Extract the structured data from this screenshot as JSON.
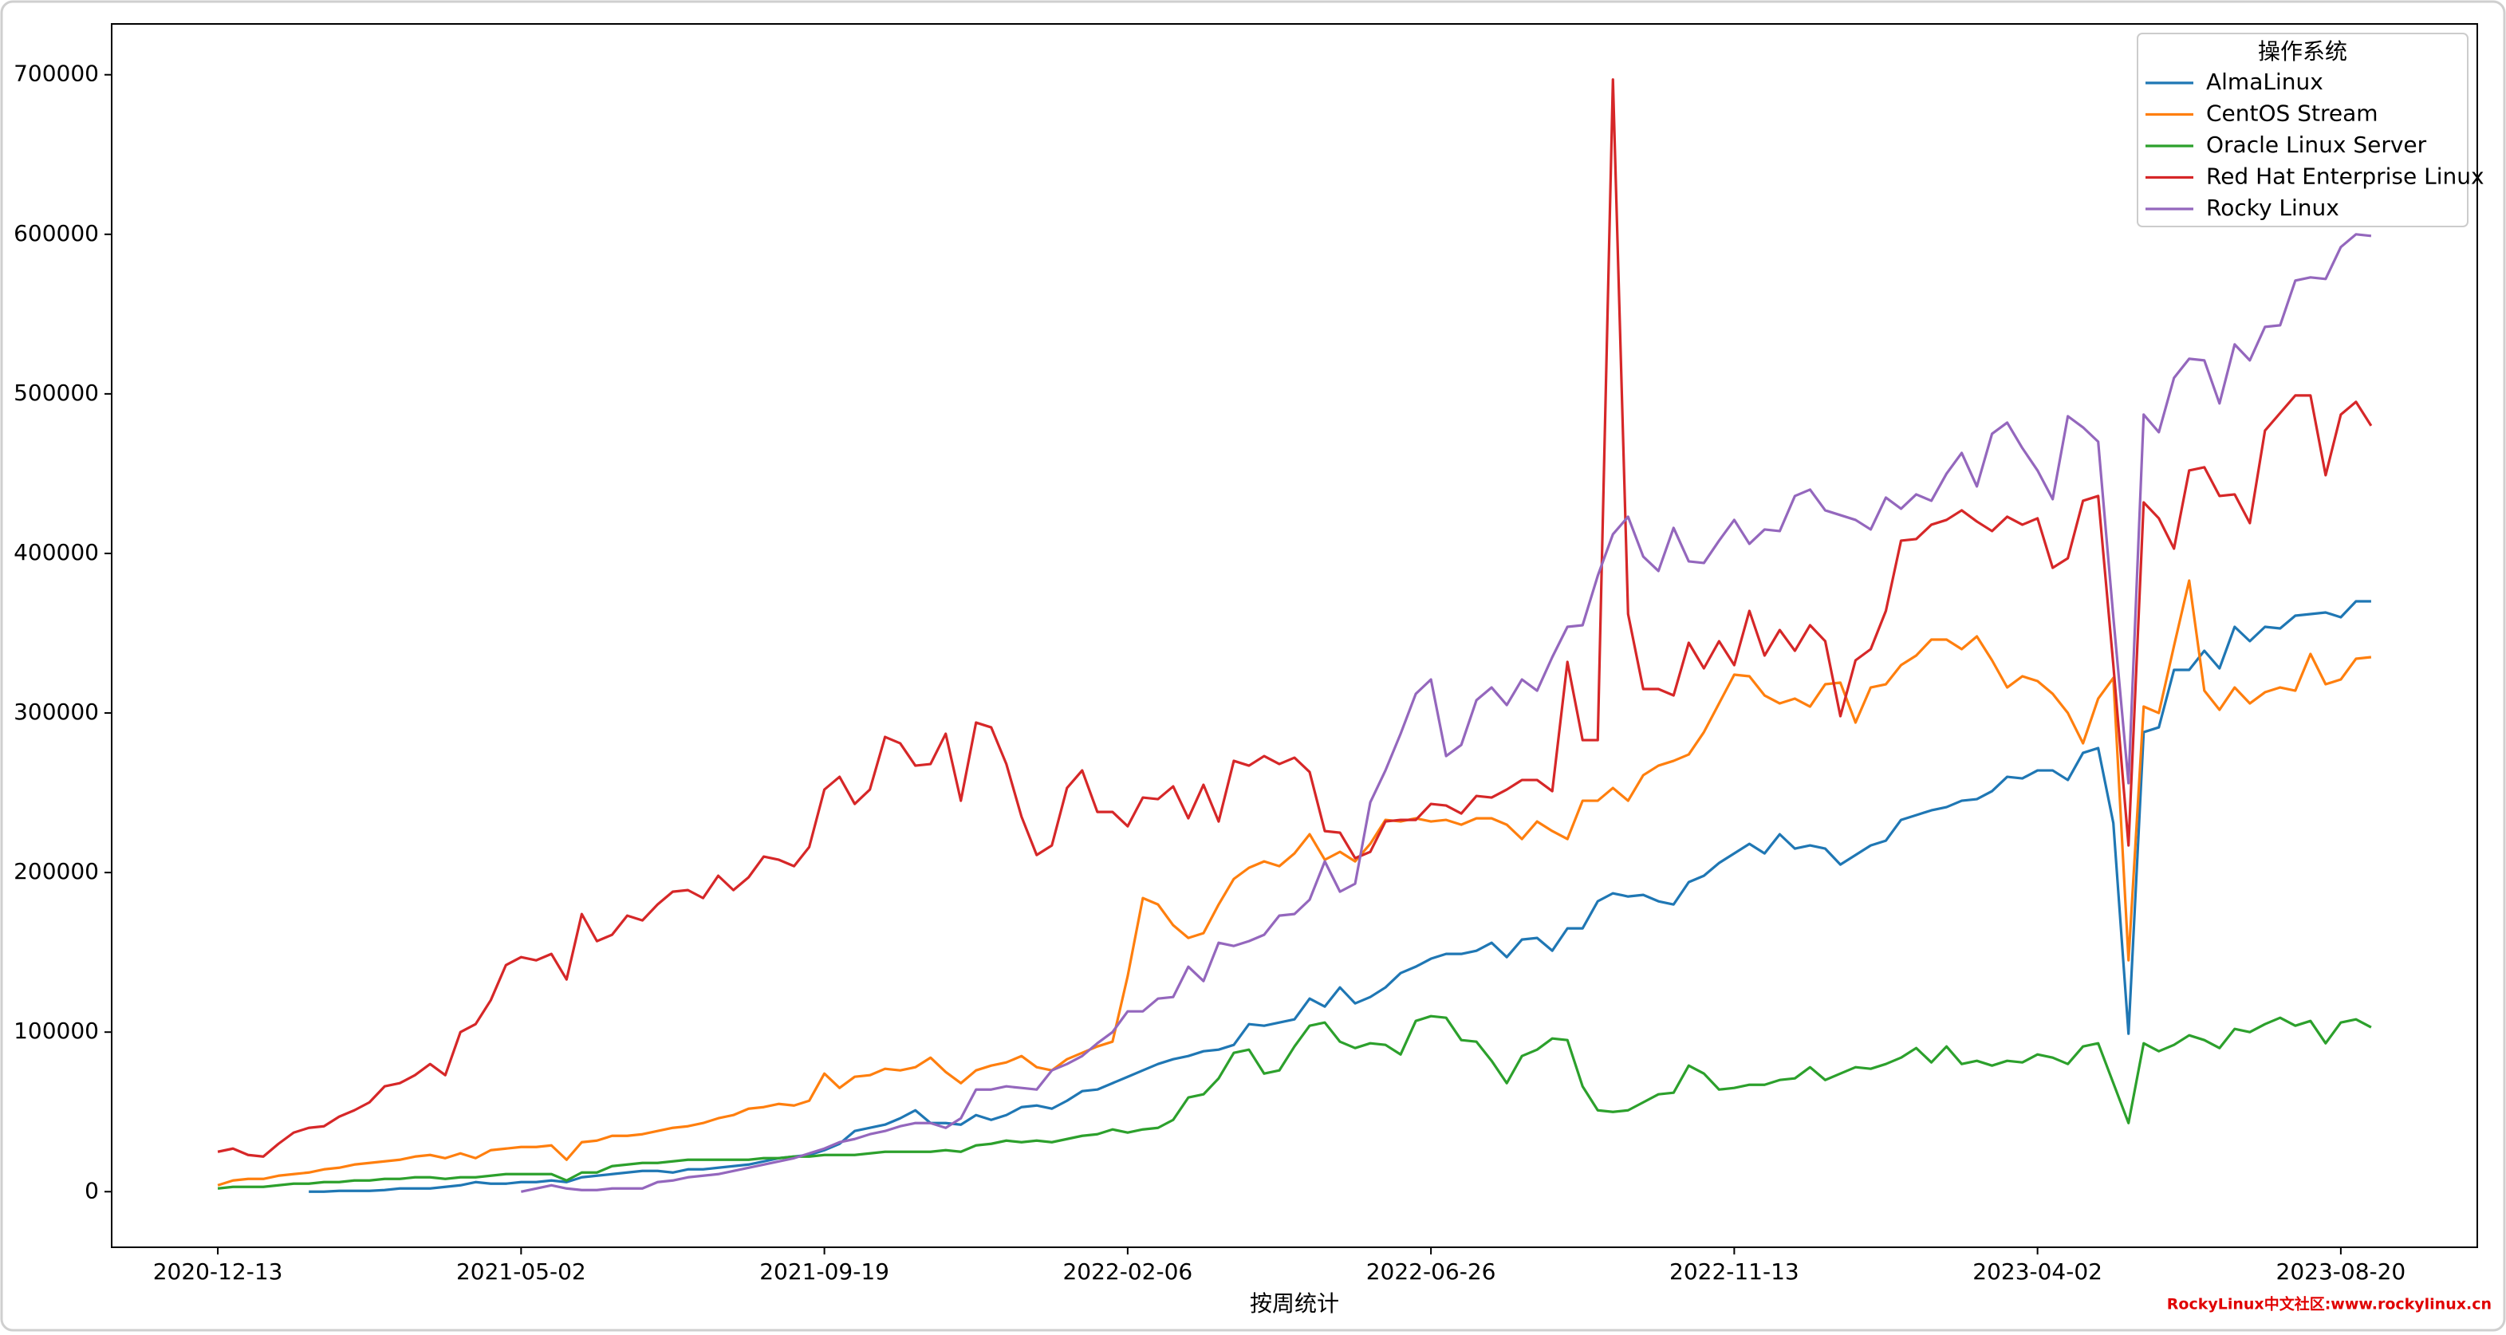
{
  "chart_data": {
    "type": "line",
    "x_label": "按周统计",
    "legend_title": "操作系统",
    "legend": "upper right",
    "watermark": "RockyLinux中文社区:www.rockylinux.cn",
    "x": [
      "2020-12-13",
      "2020-12-20",
      "2020-12-27",
      "2021-01-03",
      "2021-01-10",
      "2021-01-17",
      "2021-01-24",
      "2021-01-31",
      "2021-02-07",
      "2021-02-14",
      "2021-02-21",
      "2021-02-28",
      "2021-03-07",
      "2021-03-14",
      "2021-03-21",
      "2021-03-28",
      "2021-04-04",
      "2021-04-11",
      "2021-04-18",
      "2021-04-25",
      "2021-05-02",
      "2021-05-09",
      "2021-05-16",
      "2021-05-23",
      "2021-05-30",
      "2021-06-06",
      "2021-06-13",
      "2021-06-20",
      "2021-06-27",
      "2021-07-04",
      "2021-07-11",
      "2021-07-18",
      "2021-07-25",
      "2021-08-01",
      "2021-08-08",
      "2021-08-15",
      "2021-08-22",
      "2021-08-29",
      "2021-09-05",
      "2021-09-12",
      "2021-09-19",
      "2021-09-26",
      "2021-10-03",
      "2021-10-10",
      "2021-10-17",
      "2021-10-24",
      "2021-10-31",
      "2021-11-07",
      "2021-11-14",
      "2021-11-21",
      "2021-11-28",
      "2021-12-05",
      "2021-12-12",
      "2021-12-19",
      "2021-12-26",
      "2022-01-02",
      "2022-01-09",
      "2022-01-16",
      "2022-01-23",
      "2022-01-30",
      "2022-02-06",
      "2022-02-13",
      "2022-02-20",
      "2022-02-27",
      "2022-03-06",
      "2022-03-13",
      "2022-03-20",
      "2022-03-27",
      "2022-04-03",
      "2022-04-10",
      "2022-04-17",
      "2022-04-24",
      "2022-05-01",
      "2022-05-08",
      "2022-05-15",
      "2022-05-22",
      "2022-05-29",
      "2022-06-05",
      "2022-06-12",
      "2022-06-19",
      "2022-06-26",
      "2022-07-03",
      "2022-07-10",
      "2022-07-17",
      "2022-07-24",
      "2022-07-31",
      "2022-08-07",
      "2022-08-14",
      "2022-08-21",
      "2022-08-28",
      "2022-09-04",
      "2022-09-11",
      "2022-09-18",
      "2022-09-25",
      "2022-10-02",
      "2022-10-09",
      "2022-10-16",
      "2022-10-23",
      "2022-10-30",
      "2022-11-06",
      "2022-11-13",
      "2022-11-20",
      "2022-11-27",
      "2022-12-04",
      "2022-12-11",
      "2022-12-18",
      "2022-12-25",
      "2023-01-01",
      "2023-01-08",
      "2023-01-15",
      "2023-01-22",
      "2023-01-29",
      "2023-02-05",
      "2023-02-12",
      "2023-02-19",
      "2023-02-26",
      "2023-03-05",
      "2023-03-12",
      "2023-03-19",
      "2023-03-26",
      "2023-04-02",
      "2023-04-09",
      "2023-04-16",
      "2023-04-23",
      "2023-04-30",
      "2023-05-07",
      "2023-05-14",
      "2023-05-21",
      "2023-05-28",
      "2023-06-04",
      "2023-06-11",
      "2023-06-18",
      "2023-06-25",
      "2023-07-02",
      "2023-07-09",
      "2023-07-16",
      "2023-07-23",
      "2023-07-30",
      "2023-08-06",
      "2023-08-13",
      "2023-08-20",
      "2023-08-27",
      "2023-09-03"
    ],
    "xlim": [
      "2020-10-25",
      "2023-10-22"
    ],
    "xticks": [
      "2020-12-13",
      "2021-05-02",
      "2021-09-19",
      "2022-02-06",
      "2022-06-26",
      "2022-11-13",
      "2023-04-02",
      "2023-08-20"
    ],
    "ylim": [
      -34850,
      731850
    ],
    "yticks": [
      0,
      100000,
      200000,
      300000,
      400000,
      500000,
      600000,
      700000
    ],
    "series": [
      {
        "name": "AlmaLinux",
        "color": "#1f77b4",
        "values": [
          null,
          null,
          null,
          null,
          null,
          null,
          0,
          0,
          500,
          500,
          500,
          1000,
          2000,
          2000,
          2000,
          3000,
          4000,
          6000,
          5000,
          5000,
          6000,
          6000,
          7000,
          6000,
          9000,
          10000,
          11000,
          12000,
          13000,
          13000,
          12000,
          14000,
          14000,
          15000,
          16000,
          17000,
          19000,
          21000,
          22000,
          23000,
          26000,
          30000,
          38000,
          40000,
          42000,
          46000,
          51000,
          43000,
          43000,
          42000,
          48000,
          45000,
          48000,
          53000,
          54000,
          52000,
          57000,
          63000,
          64000,
          68000,
          72000,
          76000,
          80000,
          83000,
          85000,
          88000,
          89000,
          92000,
          105000,
          104000,
          106000,
          108000,
          121000,
          116000,
          128000,
          118000,
          122000,
          128000,
          137000,
          141000,
          146000,
          149000,
          149000,
          151000,
          156000,
          147000,
          158000,
          159000,
          151000,
          165000,
          165000,
          182000,
          187000,
          185000,
          186000,
          182000,
          180000,
          194000,
          198000,
          206000,
          212000,
          218000,
          212000,
          224000,
          215000,
          217000,
          215000,
          205000,
          211000,
          217000,
          220000,
          233000,
          236000,
          239000,
          241000,
          245000,
          246000,
          251000,
          260000,
          259000,
          264000,
          264000,
          258000,
          275000,
          278000,
          231000,
          99000,
          288000,
          291000,
          327000,
          327000,
          339000,
          328000,
          354000,
          345000,
          354000,
          353000,
          361000,
          362000,
          363000,
          360000,
          370000,
          370000
        ]
      },
      {
        "name": "CentOS Stream",
        "color": "#ff7f0e",
        "values": [
          4000,
          7000,
          8000,
          8000,
          10000,
          11000,
          12000,
          14000,
          15000,
          17000,
          18000,
          19000,
          20000,
          22000,
          23000,
          21000,
          24000,
          21000,
          26000,
          27000,
          28000,
          28000,
          29000,
          20000,
          31000,
          32000,
          35000,
          35000,
          36000,
          38000,
          40000,
          41000,
          43000,
          46000,
          48000,
          52000,
          53000,
          55000,
          54000,
          57000,
          74000,
          65000,
          72000,
          73000,
          77000,
          76000,
          78000,
          84000,
          75000,
          68000,
          76000,
          79000,
          81000,
          85000,
          78000,
          76000,
          83000,
          87000,
          91000,
          94000,
          135000,
          184000,
          180000,
          167000,
          159000,
          162000,
          180000,
          196000,
          203000,
          207000,
          204000,
          212000,
          224000,
          208000,
          213000,
          207000,
          218000,
          233000,
          232000,
          234000,
          232000,
          233000,
          230000,
          234000,
          234000,
          230000,
          221000,
          232000,
          226000,
          221000,
          245000,
          245000,
          253000,
          245000,
          261000,
          267000,
          270000,
          274000,
          288000,
          306000,
          324000,
          323000,
          311000,
          306000,
          309000,
          304000,
          318000,
          319000,
          294000,
          316000,
          318000,
          330000,
          336000,
          346000,
          346000,
          340000,
          348000,
          333000,
          316000,
          323000,
          320000,
          312000,
          300000,
          281000,
          309000,
          322000,
          145000,
          304000,
          300000,
          342000,
          383000,
          314000,
          302000,
          316000,
          306000,
          313000,
          316000,
          314000,
          337000,
          318000,
          321000,
          334000,
          335000
        ]
      },
      {
        "name": "Oracle Linux Server",
        "color": "#2ca02c",
        "values": [
          2000,
          3000,
          3000,
          3000,
          4000,
          5000,
          5000,
          6000,
          6000,
          7000,
          7000,
          8000,
          8000,
          9000,
          9000,
          8000,
          9000,
          9000,
          10000,
          11000,
          11000,
          11000,
          11000,
          7000,
          12000,
          12000,
          16000,
          17000,
          18000,
          18000,
          19000,
          20000,
          20000,
          20000,
          20000,
          20000,
          21000,
          21000,
          22000,
          22000,
          23000,
          23000,
          23000,
          24000,
          25000,
          25000,
          25000,
          25000,
          26000,
          25000,
          29000,
          30000,
          32000,
          31000,
          32000,
          31000,
          33000,
          35000,
          36000,
          39000,
          37000,
          39000,
          40000,
          45000,
          59000,
          61000,
          71000,
          87000,
          89000,
          74000,
          76000,
          91000,
          104000,
          106000,
          94000,
          90000,
          93000,
          92000,
          86000,
          107000,
          110000,
          109000,
          95000,
          94000,
          82000,
          68000,
          85000,
          89000,
          96000,
          95000,
          66000,
          51000,
          50000,
          51000,
          56000,
          61000,
          62000,
          79000,
          74000,
          64000,
          65000,
          67000,
          67000,
          70000,
          71000,
          78000,
          70000,
          74000,
          78000,
          77000,
          80000,
          84000,
          90000,
          81000,
          91000,
          80000,
          82000,
          79000,
          82000,
          81000,
          86000,
          84000,
          80000,
          91000,
          93000,
          68000,
          43000,
          93000,
          88000,
          92000,
          98000,
          95000,
          90000,
          102000,
          100000,
          105000,
          109000,
          104000,
          107000,
          93000,
          106000,
          108000,
          103000
        ]
      },
      {
        "name": "Red Hat Enterprise Linux",
        "color": "#d62728",
        "values": [
          25000,
          27000,
          23000,
          22000,
          30000,
          37000,
          40000,
          41000,
          47000,
          51000,
          56000,
          66000,
          68000,
          73000,
          80000,
          73000,
          100000,
          105000,
          120000,
          142000,
          147000,
          145000,
          149000,
          133000,
          174000,
          157000,
          161000,
          173000,
          170000,
          180000,
          188000,
          189000,
          184000,
          198000,
          189000,
          197000,
          210000,
          208000,
          204000,
          216000,
          252000,
          260000,
          243000,
          252000,
          285000,
          281000,
          267000,
          268000,
          287000,
          245000,
          294000,
          291000,
          268000,
          235000,
          211000,
          217000,
          253000,
          264000,
          238000,
          238000,
          229000,
          247000,
          246000,
          254000,
          234000,
          255000,
          232000,
          270000,
          267000,
          273000,
          268000,
          272000,
          263000,
          226000,
          225000,
          209000,
          213000,
          232000,
          233000,
          233000,
          243000,
          242000,
          237000,
          248000,
          247000,
          252000,
          258000,
          258000,
          251000,
          332000,
          283000,
          283000,
          697000,
          362000,
          315000,
          315000,
          311000,
          344000,
          328000,
          345000,
          330000,
          364000,
          336000,
          352000,
          339000,
          355000,
          345000,
          298000,
          333000,
          340000,
          364000,
          408000,
          409000,
          418000,
          421000,
          427000,
          420000,
          414000,
          423000,
          418000,
          422000,
          391000,
          397000,
          433000,
          436000,
          330000,
          217000,
          432000,
          422000,
          403000,
          452000,
          454000,
          436000,
          437000,
          419000,
          477000,
          488000,
          499000,
          499000,
          449000,
          487000,
          495000,
          480000
        ]
      },
      {
        "name": "Rocky Linux",
        "color": "#9467bd",
        "values": [
          null,
          null,
          null,
          null,
          null,
          null,
          null,
          null,
          null,
          null,
          null,
          null,
          null,
          null,
          null,
          null,
          null,
          null,
          null,
          null,
          0,
          2000,
          4000,
          2000,
          1000,
          1000,
          2000,
          2000,
          2000,
          6000,
          7000,
          9000,
          10000,
          11000,
          13000,
          15000,
          17000,
          19000,
          21000,
          24000,
          27000,
          31000,
          33000,
          36000,
          38000,
          41000,
          43000,
          43000,
          40000,
          46000,
          64000,
          64000,
          66000,
          65000,
          64000,
          76000,
          80000,
          85000,
          93000,
          100000,
          113000,
          113000,
          121000,
          122000,
          141000,
          132000,
          156000,
          154000,
          157000,
          161000,
          173000,
          174000,
          183000,
          207000,
          188000,
          193000,
          244000,
          264000,
          287000,
          312000,
          321000,
          273000,
          280000,
          308000,
          316000,
          305000,
          321000,
          314000,
          335000,
          354000,
          355000,
          386000,
          412000,
          423000,
          398000,
          389000,
          416000,
          395000,
          394000,
          408000,
          421000,
          406000,
          415000,
          414000,
          436000,
          440000,
          427000,
          424000,
          421000,
          415000,
          435000,
          428000,
          437000,
          433000,
          450000,
          463000,
          442000,
          475000,
          482000,
          466000,
          452000,
          434000,
          486000,
          479000,
          470000,
          360000,
          256000,
          487000,
          476000,
          510000,
          522000,
          521000,
          494000,
          531000,
          521000,
          542000,
          543000,
          571000,
          573000,
          572000,
          592000,
          600000,
          599000
        ]
      }
    ]
  }
}
